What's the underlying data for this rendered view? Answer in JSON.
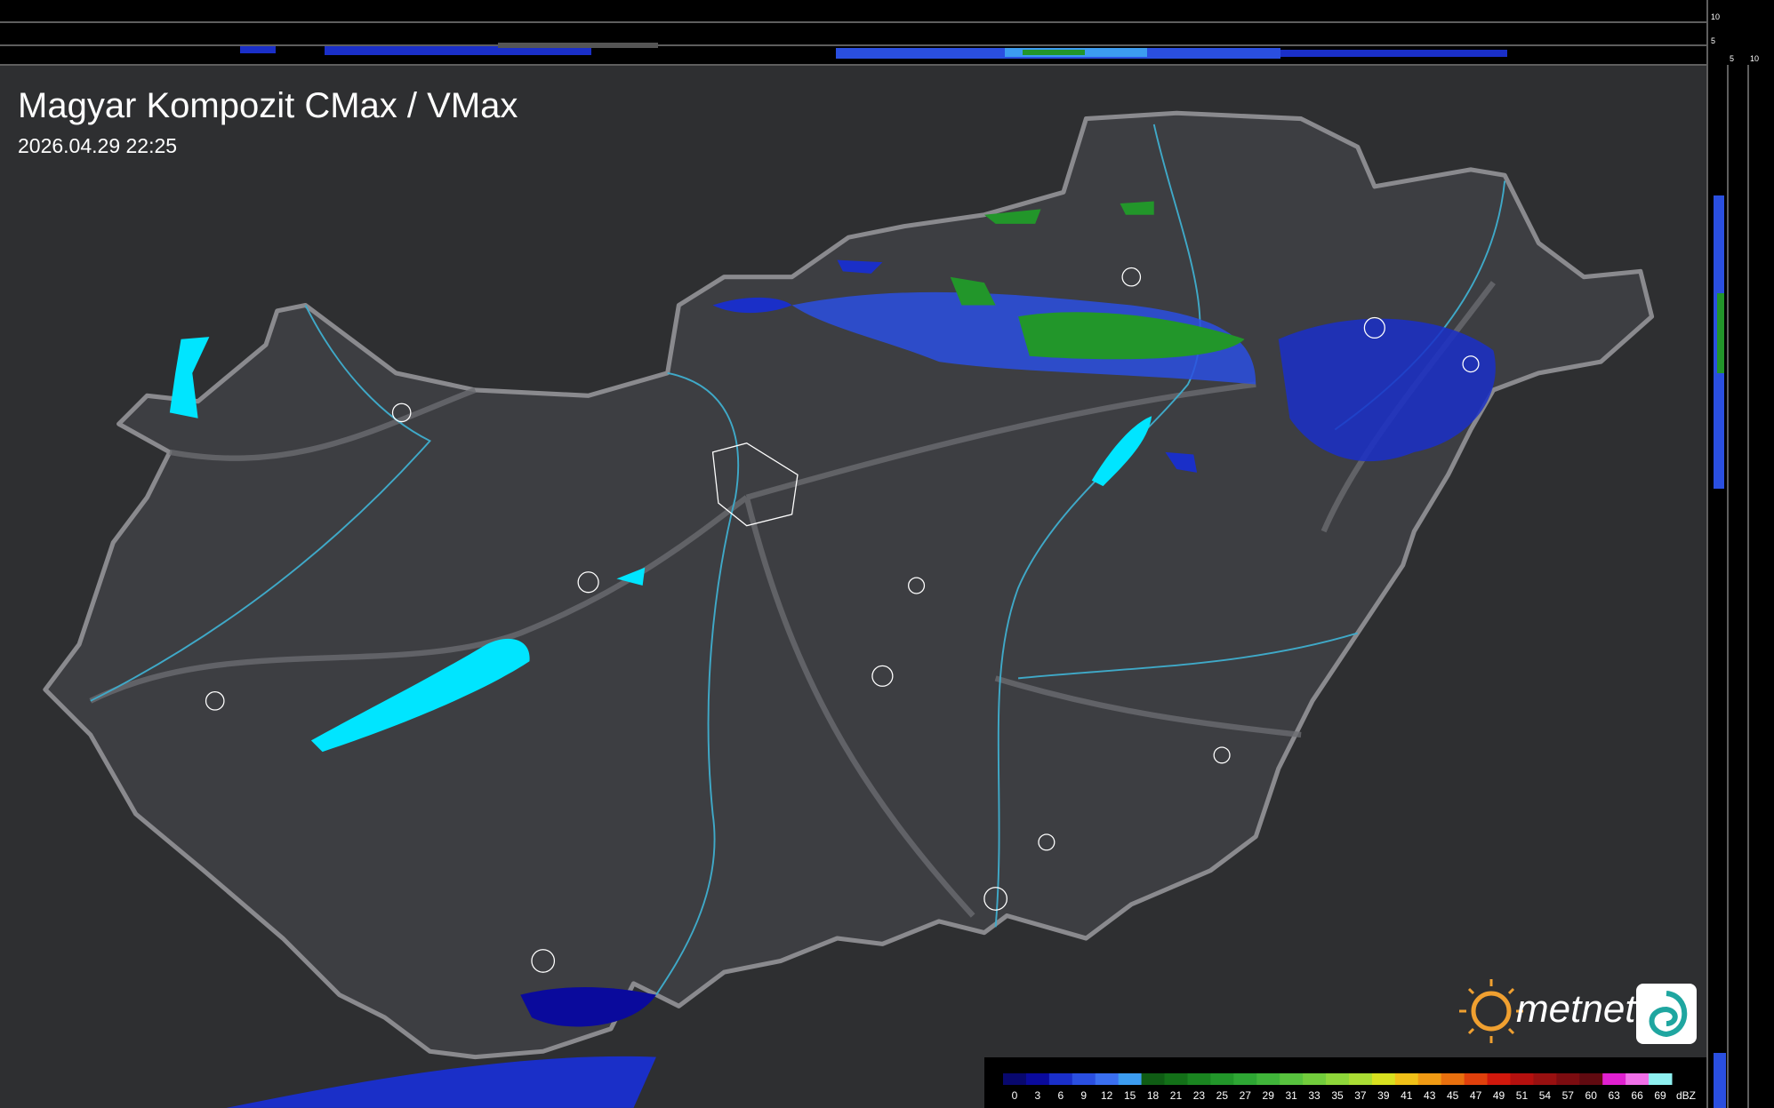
{
  "header": {
    "title": "Magyar Kompozit CMax / VMax",
    "timestamp": "2026.04.29 22:25"
  },
  "profile_axes": {
    "top": [
      "10",
      "5"
    ],
    "side": [
      "5",
      "10"
    ]
  },
  "brand": "metnet",
  "legend": {
    "ticks": [
      0,
      3,
      6,
      9,
      12,
      15,
      18,
      21,
      23,
      25,
      27,
      29,
      31,
      33,
      35,
      37,
      39,
      41,
      43,
      45,
      47,
      49,
      51,
      54,
      57,
      60,
      63,
      66,
      69
    ],
    "unit": "dBZ",
    "colors": [
      "#08086e",
      "#0a0a9c",
      "#1a2fc8",
      "#2a4fe0",
      "#3a6ff0",
      "#3c9cf0",
      "#0f5c14",
      "#137018",
      "#1a8420",
      "#22962a",
      "#2ea634",
      "#40b43a",
      "#58c23e",
      "#72cc3c",
      "#8ed63a",
      "#aadc34",
      "#d8e020",
      "#f0c018",
      "#f09a14",
      "#e8700e",
      "#e0400c",
      "#d0180c",
      "#b4100e",
      "#981010",
      "#7c0c10",
      "#600a10",
      "#e020d0",
      "#f070e8",
      "#8ef0f0"
    ]
  }
}
